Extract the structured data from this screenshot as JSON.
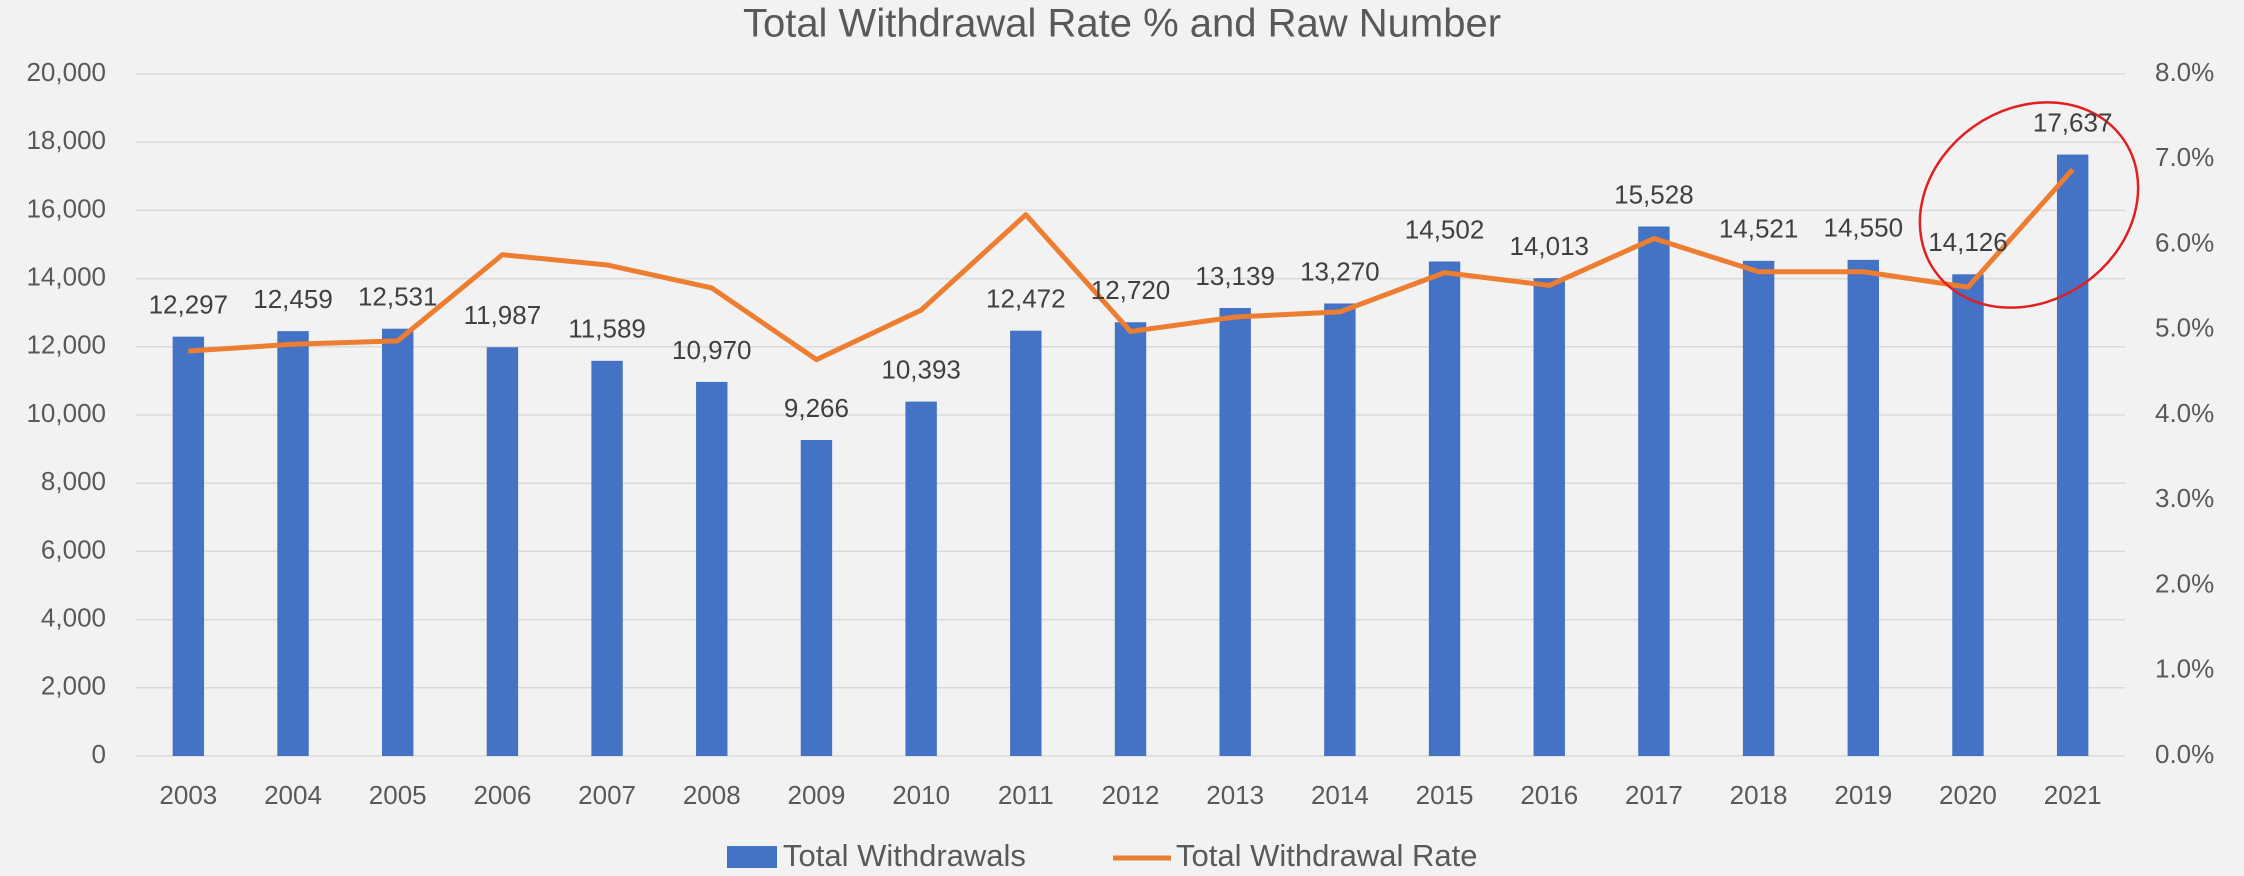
{
  "chart_data": {
    "type": "bar",
    "title": "Total Withdrawal Rate % and Raw Number",
    "categories": [
      "2003",
      "2004",
      "2005",
      "2006",
      "2007",
      "2008",
      "2009",
      "2010",
      "2011",
      "2012",
      "2013",
      "2014",
      "2015",
      "2016",
      "2017",
      "2018",
      "2019",
      "2020",
      "2021"
    ],
    "series": [
      {
        "name": "Total Withdrawals",
        "color": "#4472c4",
        "type": "bar",
        "values": [
          12297,
          12459,
          12531,
          11987,
          11589,
          10970,
          9266,
          10393,
          12472,
          12720,
          13139,
          13270,
          14502,
          14013,
          15528,
          14521,
          14550,
          14126,
          17637
        ],
        "value_labels": [
          "12,297",
          "12,459",
          "12,531",
          "11,987",
          "11,589",
          "10,970",
          "9,266",
          "10,393",
          "12,472",
          "12,720",
          "13,139",
          "13,270",
          "14,502",
          "14,013",
          "15,528",
          "14,521",
          "14,550",
          "14,126",
          "17,637"
        ]
      },
      {
        "name": "Total Withdrawal Rate",
        "color": "#ed7d31",
        "type": "line",
        "axis": "y2",
        "values": [
          4.75,
          4.83,
          4.87,
          5.88,
          5.76,
          5.49,
          4.65,
          5.23,
          6.35,
          4.98,
          5.15,
          5.21,
          5.67,
          5.52,
          6.07,
          5.68,
          5.68,
          5.5,
          6.88
        ]
      }
    ],
    "ylim": [
      0,
      20000
    ],
    "yticks": [
      {
        "value": 0,
        "label": "0"
      },
      {
        "value": 2000,
        "label": "2,000"
      },
      {
        "value": 4000,
        "label": "4,000"
      },
      {
        "value": 6000,
        "label": "6,000"
      },
      {
        "value": 8000,
        "label": "8,000"
      },
      {
        "value": 10000,
        "label": "10,000"
      },
      {
        "value": 12000,
        "label": "12,000"
      },
      {
        "value": 14000,
        "label": "14,000"
      },
      {
        "value": 16000,
        "label": "16,000"
      },
      {
        "value": 18000,
        "label": "18,000"
      },
      {
        "value": 20000,
        "label": "20,000"
      }
    ],
    "y2lim": [
      0,
      8
    ],
    "y2ticks": [
      {
        "value": 0,
        "label": "0.0%"
      },
      {
        "value": 1,
        "label": "1.0%"
      },
      {
        "value": 2,
        "label": "2.0%"
      },
      {
        "value": 3,
        "label": "3.0%"
      },
      {
        "value": 4,
        "label": "4.0%"
      },
      {
        "value": 5,
        "label": "5.0%"
      },
      {
        "value": 6,
        "label": "6.0%"
      },
      {
        "value": 7,
        "label": "7.0%"
      },
      {
        "value": 8,
        "label": "8.0%"
      }
    ],
    "grid": true,
    "legend": "bottom"
  }
}
